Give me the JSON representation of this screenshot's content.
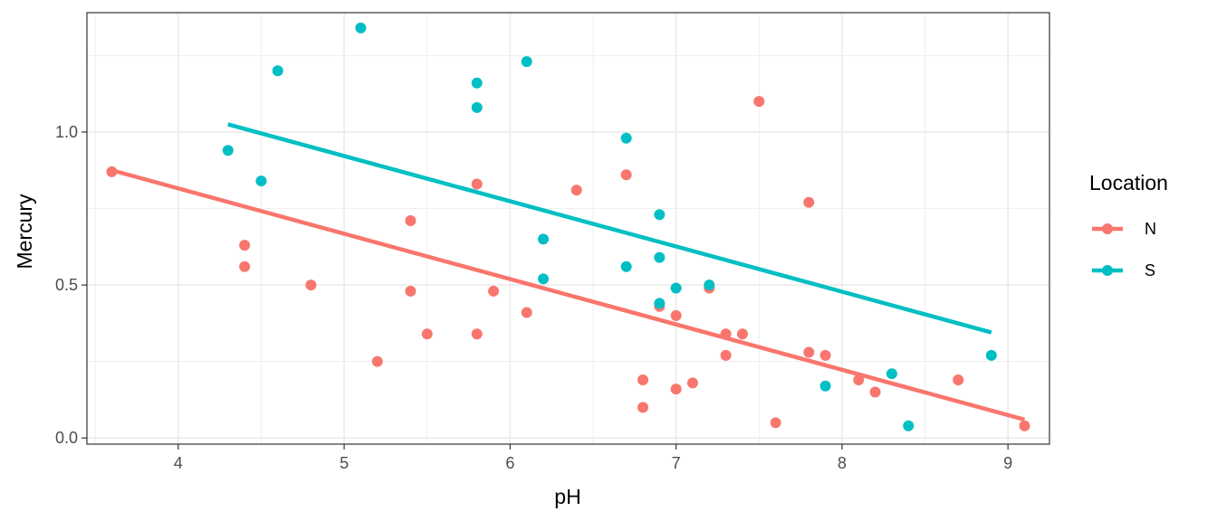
{
  "chart_data": {
    "type": "scatter",
    "xlabel": "pH",
    "ylabel": "Mercury",
    "xlim": [
      3.45,
      9.25
    ],
    "ylim": [
      -0.02,
      1.39
    ],
    "x_ticks": [
      4,
      5,
      6,
      7,
      8,
      9
    ],
    "y_ticks": [
      0.0,
      0.5,
      1.0
    ],
    "y_tick_labels": [
      "0.0",
      "0.5",
      "1.0"
    ],
    "grid": true,
    "legend": {
      "title": "Location",
      "position": "right"
    },
    "series": [
      {
        "name": "N",
        "color": "#F8766D",
        "points": [
          [
            3.6,
            0.87
          ],
          [
            4.4,
            0.63
          ],
          [
            4.4,
            0.56
          ],
          [
            4.8,
            0.5
          ],
          [
            5.2,
            0.25
          ],
          [
            5.4,
            0.71
          ],
          [
            5.4,
            0.48
          ],
          [
            5.5,
            0.34
          ],
          [
            5.8,
            0.83
          ],
          [
            5.8,
            0.34
          ],
          [
            5.9,
            0.48
          ],
          [
            6.1,
            0.41
          ],
          [
            6.4,
            0.81
          ],
          [
            6.7,
            0.86
          ],
          [
            6.8,
            0.19
          ],
          [
            6.8,
            0.1
          ],
          [
            6.9,
            0.43
          ],
          [
            7.0,
            0.4
          ],
          [
            7.0,
            0.16
          ],
          [
            7.1,
            0.18
          ],
          [
            7.2,
            0.49
          ],
          [
            7.3,
            0.34
          ],
          [
            7.3,
            0.27
          ],
          [
            7.4,
            0.34
          ],
          [
            7.5,
            1.1
          ],
          [
            7.6,
            0.05
          ],
          [
            7.8,
            0.77
          ],
          [
            7.8,
            0.28
          ],
          [
            7.9,
            0.27
          ],
          [
            8.1,
            0.19
          ],
          [
            8.2,
            0.15
          ],
          [
            8.7,
            0.19
          ],
          [
            9.1,
            0.04
          ]
        ],
        "fit": [
          [
            3.6,
            0.875
          ],
          [
            9.1,
            0.06
          ]
        ]
      },
      {
        "name": "S",
        "color": "#00BFC4",
        "points": [
          [
            4.3,
            0.94
          ],
          [
            4.5,
            0.84
          ],
          [
            4.6,
            1.2
          ],
          [
            5.1,
            1.34
          ],
          [
            5.8,
            1.16
          ],
          [
            5.8,
            1.08
          ],
          [
            6.1,
            1.23
          ],
          [
            6.2,
            0.65
          ],
          [
            6.2,
            0.52
          ],
          [
            6.7,
            0.98
          ],
          [
            6.7,
            0.56
          ],
          [
            6.9,
            0.73
          ],
          [
            6.9,
            0.59
          ],
          [
            6.9,
            0.44
          ],
          [
            7.0,
            0.49
          ],
          [
            7.2,
            0.5
          ],
          [
            7.9,
            0.17
          ],
          [
            8.3,
            0.21
          ],
          [
            8.4,
            0.04
          ],
          [
            8.9,
            0.27
          ]
        ],
        "fit": [
          [
            4.3,
            1.025
          ],
          [
            8.9,
            0.345
          ]
        ]
      }
    ]
  }
}
